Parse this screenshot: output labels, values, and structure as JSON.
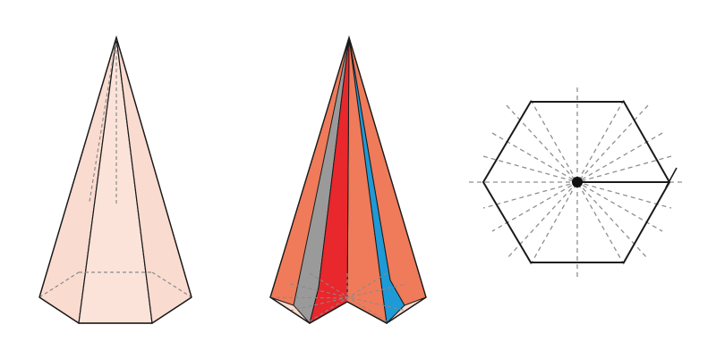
{
  "figure": {
    "panels": [
      {
        "name": "hexagonal-pyramid",
        "description_visible": false
      },
      {
        "name": "pyramid-cut-into-wedges",
        "description_visible": false
      },
      {
        "name": "hexagon-symmetry-axes",
        "description_visible": false
      }
    ],
    "colors": {
      "face_fill": "#fadbd0",
      "face_light": "#fbe3d9",
      "edge": "#1a1a1a",
      "hidden_edge": "#8a8a8a",
      "wedge_orange": "#ef7b5a",
      "wedge_red": "#e8282c",
      "wedge_gray": "#9a9a9a",
      "wedge_blue": "#1e9ad6",
      "axis_dash": "#8f8f8f",
      "center_dot": "#111111"
    }
  }
}
